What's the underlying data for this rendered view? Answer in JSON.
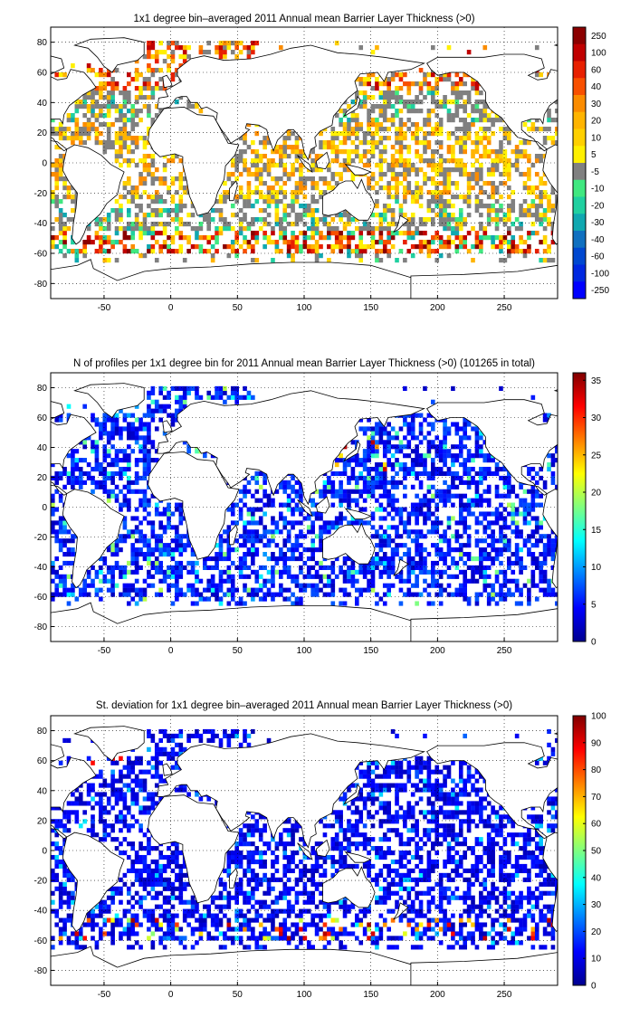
{
  "chart_data": [
    {
      "type": "heatmap",
      "title": "1x1 degree bin–averaged 2011 Annual mean Barrier Layer Thickness (>0)",
      "xlim": [
        -90,
        290
      ],
      "ylim": [
        -90,
        90
      ],
      "xticks": [
        -50,
        0,
        50,
        100,
        150,
        200,
        250
      ],
      "yticks": [
        -80,
        -60,
        -40,
        -20,
        0,
        20,
        40,
        60,
        80
      ],
      "grid": true,
      "colorbar": {
        "labels": [
          "250",
          "100",
          "60",
          "40",
          "30",
          "20",
          "10",
          "5",
          "-5",
          "-10",
          "-20",
          "-30",
          "-40",
          "-60",
          "-100",
          "-250"
        ],
        "colors": [
          "#8b0000",
          "#c00000",
          "#e82000",
          "#f85000",
          "#fb8c00",
          "#ffb400",
          "#ffd000",
          "#fff000",
          "#808080",
          "#40e880",
          "#20d0a0",
          "#10a8b0",
          "#1070c0",
          "#0048d0",
          "#0028e0",
          "#0000ff"
        ]
      }
    },
    {
      "type": "heatmap",
      "title": "N of profiles per 1x1 degree bin for 2011 Annual mean Barrier Layer Thickness (>0) (101265 in total)",
      "xlim": [
        -90,
        290
      ],
      "ylim": [
        -90,
        90
      ],
      "xticks": [
        -50,
        0,
        50,
        100,
        150,
        200,
        250
      ],
      "yticks": [
        -80,
        -60,
        -40,
        -20,
        0,
        20,
        40,
        60,
        80
      ],
      "grid": true,
      "colorbar": {
        "range": [
          0,
          36
        ],
        "ticks": [
          0,
          5,
          10,
          15,
          20,
          25,
          30,
          35
        ],
        "colormap": "jet"
      }
    },
    {
      "type": "heatmap",
      "title": "St. deviation for 1x1 degree bin–averaged 2011 Annual mean Barrier Layer Thickness (>0)",
      "xlim": [
        -90,
        290
      ],
      "ylim": [
        -90,
        90
      ],
      "xticks": [
        -50,
        0,
        50,
        100,
        150,
        200,
        250
      ],
      "yticks": [
        -80,
        -60,
        -40,
        -20,
        0,
        20,
        40,
        60,
        80
      ],
      "grid": true,
      "colorbar": {
        "range": [
          0,
          100
        ],
        "ticks": [
          0,
          10,
          20,
          30,
          40,
          50,
          60,
          70,
          80,
          90,
          100
        ],
        "colormap": "jet"
      }
    }
  ]
}
